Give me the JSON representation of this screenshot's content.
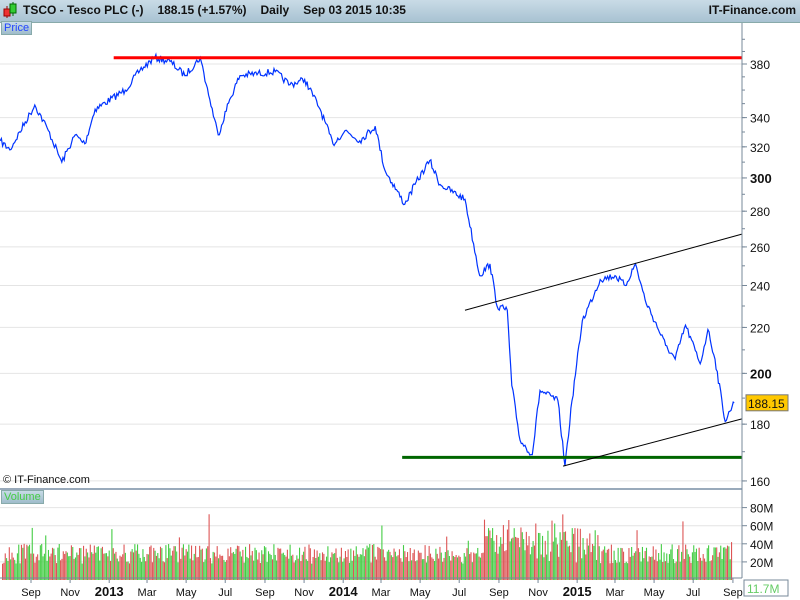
{
  "header": {
    "symbol": "TSCO - Tesco PLC (-)",
    "quote": "188.15 (+1.57%)",
    "period": "Daily",
    "datetime": "Sep 03 2015 10:35",
    "brand": "IT-Finance.com"
  },
  "panels": {
    "price_label": "Price",
    "volume_label": "Volume",
    "copyright": "© IT-Finance.com"
  },
  "colors": {
    "price_line": "#0033ff",
    "resistance": "#ff0000",
    "support": "#006600",
    "trendline": "#000000",
    "volume_up": "#44cc44",
    "volume_down": "#dd5555",
    "last_price_bg": "#ffc800"
  },
  "chart_data": {
    "type": "line",
    "y_scale": "log",
    "ylim": [
      155,
      400
    ],
    "xlim": [
      "2012-07-15",
      "2015-09-15"
    ],
    "grid": true,
    "last_price": "188.15",
    "last_volume": "11.7M",
    "y_ticks": [
      "160",
      "180",
      "200",
      "220",
      "240",
      "260",
      "280",
      "300",
      "320",
      "340",
      "380"
    ],
    "volume_ticks": [
      "20M",
      "40M",
      "60M",
      "80M"
    ],
    "x_ticks": [
      {
        "label": "Sep",
        "date": "2012-09-01"
      },
      {
        "label": "Nov",
        "date": "2012-11-01"
      },
      {
        "label": "2013",
        "date": "2013-01-01",
        "bold": true
      },
      {
        "label": "Mar",
        "date": "2013-03-01"
      },
      {
        "label": "May",
        "date": "2013-05-01"
      },
      {
        "label": "Jul",
        "date": "2013-07-01"
      },
      {
        "label": "Sep",
        "date": "2013-09-01"
      },
      {
        "label": "Nov",
        "date": "2013-11-01"
      },
      {
        "label": "2014",
        "date": "2014-01-01",
        "bold": true
      },
      {
        "label": "Mar",
        "date": "2014-03-01"
      },
      {
        "label": "May",
        "date": "2014-05-01"
      },
      {
        "label": "Jul",
        "date": "2014-07-01"
      },
      {
        "label": "Sep",
        "date": "2014-09-01"
      },
      {
        "label": "Nov",
        "date": "2014-11-01"
      },
      {
        "label": "2015",
        "date": "2015-01-01",
        "bold": true
      },
      {
        "label": "Mar",
        "date": "2015-03-01"
      },
      {
        "label": "May",
        "date": "2015-05-01"
      },
      {
        "label": "Jul",
        "date": "2015-07-01"
      },
      {
        "label": "Sep",
        "date": "2015-09-01"
      }
    ],
    "price_series": [
      [
        "2012-07-15",
        324
      ],
      [
        "2012-07-30",
        318
      ],
      [
        "2012-09-07",
        349
      ],
      [
        "2012-09-28",
        331
      ],
      [
        "2012-10-19",
        310
      ],
      [
        "2012-11-09",
        328
      ],
      [
        "2012-11-24",
        322
      ],
      [
        "2012-12-10",
        346
      ],
      [
        "2013-01-26",
        360
      ],
      [
        "2013-02-18",
        375
      ],
      [
        "2013-03-13",
        385
      ],
      [
        "2013-04-06",
        382
      ],
      [
        "2013-04-29",
        371
      ],
      [
        "2013-05-23",
        385
      ],
      [
        "2013-06-07",
        353
      ],
      [
        "2013-06-20",
        328
      ],
      [
        "2013-07-08",
        353
      ],
      [
        "2013-07-24",
        371
      ],
      [
        "2013-09-17",
        374
      ],
      [
        "2013-10-10",
        364
      ],
      [
        "2013-11-02",
        368
      ],
      [
        "2013-11-26",
        346
      ],
      [
        "2013-12-16",
        322
      ],
      [
        "2014-01-04",
        331
      ],
      [
        "2014-01-27",
        324
      ],
      [
        "2014-02-20",
        334
      ],
      [
        "2014-03-07",
        305
      ],
      [
        "2014-04-07",
        284
      ],
      [
        "2014-04-23",
        296
      ],
      [
        "2014-05-16",
        311
      ],
      [
        "2014-06-01",
        296
      ],
      [
        "2014-07-10",
        287
      ],
      [
        "2014-08-02",
        245
      ],
      [
        "2014-08-18",
        251
      ],
      [
        "2014-08-29",
        230
      ],
      [
        "2014-09-14",
        228
      ],
      [
        "2014-09-21",
        195
      ],
      [
        "2014-10-04",
        174
      ],
      [
        "2014-10-23",
        169
      ],
      [
        "2014-11-04",
        193
      ],
      [
        "2014-12-02",
        189
      ],
      [
        "2014-12-13",
        165
      ],
      [
        "2014-12-24",
        189
      ],
      [
        "2015-01-09",
        223
      ],
      [
        "2015-02-06",
        243
      ],
      [
        "2015-03-01",
        245
      ],
      [
        "2015-03-17",
        240
      ],
      [
        "2015-04-02",
        251
      ],
      [
        "2015-04-17",
        233
      ],
      [
        "2015-05-19",
        212
      ],
      [
        "2015-06-03",
        206
      ],
      [
        "2015-06-19",
        221
      ],
      [
        "2015-07-12",
        204
      ],
      [
        "2015-07-24",
        219
      ],
      [
        "2015-08-04",
        206
      ],
      [
        "2015-08-20",
        181
      ],
      [
        "2015-08-31",
        187
      ],
      [
        "2015-09-03",
        188.15
      ]
    ],
    "annotations": [
      {
        "type": "horizontal",
        "name": "resistance",
        "price": 385,
        "from": "2013-01-08"
      },
      {
        "type": "horizontal",
        "name": "support",
        "price": 168,
        "from": "2014-04-03"
      },
      {
        "type": "trendline",
        "name": "upper-channel",
        "from": [
          "2014-07-10",
          228
        ],
        "to": [
          "2015-09-15",
          267
        ]
      },
      {
        "type": "trendline",
        "name": "lower-channel",
        "from": [
          "2014-12-10",
          165
        ],
        "to": [
          "2015-09-15",
          182
        ]
      }
    ]
  }
}
